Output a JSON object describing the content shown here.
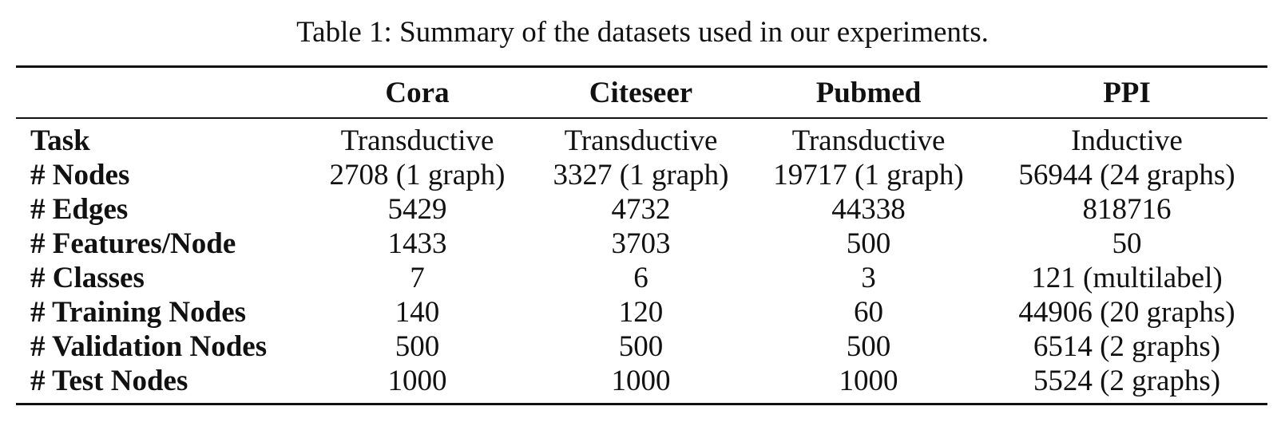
{
  "caption": "Table 1: Summary of the datasets used in our experiments.",
  "table": {
    "columns": [
      "",
      "Cora",
      "Citeseer",
      "Pubmed",
      "PPI"
    ],
    "rows": [
      {
        "label": "Task",
        "cells": [
          "Transductive",
          "Transductive",
          "Transductive",
          "Inductive"
        ]
      },
      {
        "label": "# Nodes",
        "cells": [
          "2708 (1 graph)",
          "3327 (1 graph)",
          "19717 (1 graph)",
          "56944 (24 graphs)"
        ]
      },
      {
        "label": "# Edges",
        "cells": [
          "5429",
          "4732",
          "44338",
          "818716"
        ]
      },
      {
        "label": "# Features/Node",
        "cells": [
          "1433",
          "3703",
          "500",
          "50"
        ]
      },
      {
        "label": "# Classes",
        "cells": [
          "7",
          "6",
          "3",
          "121 (multilabel)"
        ]
      },
      {
        "label": "# Training Nodes",
        "cells": [
          "140",
          "120",
          "60",
          "44906 (20 graphs)"
        ]
      },
      {
        "label": "# Validation Nodes",
        "cells": [
          "500",
          "500",
          "500",
          "6514 (2 graphs)"
        ]
      },
      {
        "label": "# Test Nodes",
        "cells": [
          "1000",
          "1000",
          "1000",
          "5524 (2 graphs)"
        ]
      }
    ]
  }
}
